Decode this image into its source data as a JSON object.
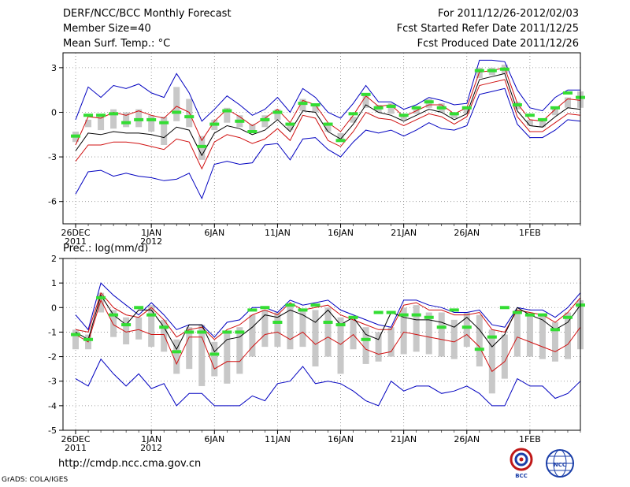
{
  "header": {
    "title": "DERF/NCC/BCC Monthly Forecast",
    "member_size": "Member Size=40",
    "variable": "Mean Surf. Temp.: °C",
    "for_range": "For 2011/12/26-2012/02/03",
    "fcst_started": "Fcst Started Refer Date 2011/12/25",
    "fcst_produced": "Fcst Produced Date 2011/12/26"
  },
  "footer": {
    "url": "http://cmdp.ncc.cma.gov.cn",
    "credit": "GrADS: COLA/IGES",
    "logo_bcc": "BCC",
    "logo_ncc": "NCC"
  },
  "colors": {
    "max_min": "#0000c0",
    "pct": "#d01010",
    "median": "#000000",
    "box": "#c8c8c8",
    "obs": "#33dd33"
  },
  "chart_data": [
    {
      "type": "line",
      "title": "Mean Surf. Temp.: °C",
      "ylim": [
        -7.5,
        4
      ],
      "yticks": [
        -6,
        -3,
        0,
        3
      ],
      "ytick_labels": [
        "-6",
        "-3",
        "0",
        "3"
      ],
      "xlim": [
        -1,
        40
      ],
      "xticks": [
        0,
        6,
        11,
        16,
        21,
        26,
        31,
        36
      ],
      "xtick_labels": [
        [
          "26DEC",
          "2011"
        ],
        [
          "1JAN",
          "2012"
        ],
        [
          "6JAN",
          ""
        ],
        [
          "11JAN",
          ""
        ],
        [
          "16JAN",
          ""
        ],
        [
          "21JAN",
          ""
        ],
        [
          "26JAN",
          ""
        ],
        [
          "1FEB",
          ""
        ]
      ],
      "grid": true,
      "series": [
        {
          "name": "max",
          "values": [
            -0.5,
            1.7,
            1.0,
            1.8,
            1.6,
            1.9,
            1.3,
            1.0,
            2.6,
            1.3,
            -0.6,
            0.2,
            1.1,
            0.5,
            -0.2,
            0.2,
            1.0,
            0.0,
            1.6,
            1.0,
            0.0,
            -0.4,
            0.6,
            1.8,
            0.7,
            0.7,
            0.2,
            0.5,
            1.0,
            0.8,
            0.5,
            0.6,
            3.5,
            3.5,
            3.4,
            1.5,
            0.3,
            0.1,
            1.0,
            1.5,
            1.5
          ]
        },
        {
          "name": "p90",
          "values": [
            -2.2,
            -0.3,
            -0.4,
            0.0,
            -0.2,
            0.1,
            -0.2,
            -0.4,
            0.4,
            0.0,
            -1.9,
            -0.6,
            0.2,
            -0.3,
            -0.9,
            -0.4,
            0.2,
            -0.7,
            0.8,
            0.5,
            -0.7,
            -1.3,
            -0.2,
            1.1,
            0.4,
            0.5,
            -0.3,
            0.1,
            0.5,
            0.5,
            -0.1,
            0.3,
            2.7,
            2.8,
            3.0,
            0.6,
            -0.5,
            -0.6,
            0.2,
            0.9,
            0.8
          ]
        },
        {
          "name": "median",
          "values": [
            -2.6,
            -1.4,
            -1.5,
            -1.3,
            -1.4,
            -1.4,
            -1.5,
            -1.7,
            -1.0,
            -1.2,
            -2.9,
            -1.4,
            -0.9,
            -1.1,
            -1.5,
            -1.2,
            -0.5,
            -1.3,
            0.1,
            0.0,
            -1.3,
            -1.8,
            -0.8,
            0.5,
            0.0,
            -0.2,
            -0.6,
            -0.2,
            0.2,
            0.0,
            -0.5,
            -0.1,
            2.2,
            2.4,
            2.6,
            0.1,
            -0.9,
            -1.0,
            -0.3,
            0.3,
            0.2
          ]
        },
        {
          "name": "p10",
          "values": [
            -3.3,
            -2.2,
            -2.2,
            -2.0,
            -2.0,
            -2.1,
            -2.3,
            -2.5,
            -1.8,
            -2.0,
            -3.8,
            -2.0,
            -1.5,
            -1.7,
            -2.1,
            -1.8,
            -1.1,
            -1.9,
            -0.2,
            -0.4,
            -1.9,
            -2.3,
            -1.3,
            0.0,
            -0.4,
            -0.5,
            -0.9,
            -0.5,
            -0.1,
            -0.3,
            -0.8,
            -0.3,
            1.8,
            2.0,
            2.2,
            -0.3,
            -1.3,
            -1.3,
            -0.7,
            -0.1,
            -0.2
          ]
        },
        {
          "name": "min",
          "values": [
            -5.5,
            -4.0,
            -3.9,
            -4.3,
            -4.1,
            -4.3,
            -4.4,
            -4.6,
            -4.5,
            -4.1,
            -5.8,
            -3.5,
            -3.3,
            -3.5,
            -3.4,
            -2.2,
            -2.1,
            -3.2,
            -1.8,
            -1.7,
            -2.5,
            -3.0,
            -2.0,
            -1.2,
            -1.4,
            -1.2,
            -1.6,
            -1.2,
            -0.7,
            -1.1,
            -1.2,
            -0.9,
            1.2,
            1.4,
            1.6,
            -0.8,
            -1.7,
            -1.7,
            -1.2,
            -0.5,
            -0.6
          ]
        },
        {
          "name": "box_upper",
          "values": [
            -1.3,
            -0.5,
            -0.3,
            0.2,
            0.0,
            0.2,
            -0.2,
            -0.3,
            1.7,
            0.9,
            -1.6,
            -0.5,
            0.3,
            -0.2,
            -0.8,
            -0.2,
            0.2,
            -0.8,
            0.9,
            0.5,
            -0.7,
            -1.4,
            -0.3,
            1.2,
            0.5,
            0.6,
            -0.2,
            0.2,
            0.9,
            0.6,
            -0.1,
            0.4,
            3.0,
            3.0,
            3.2,
            0.7,
            -0.5,
            -0.6,
            0.3,
            1.0,
            1.4
          ]
        },
        {
          "name": "box_lower",
          "values": [
            -2.0,
            -1.0,
            -1.2,
            -1.1,
            -1.0,
            -1.0,
            -1.3,
            -2.2,
            -0.6,
            -1.0,
            -3.2,
            -1.2,
            -0.7,
            -1.0,
            -1.4,
            -1.0,
            -0.5,
            -1.2,
            0.1,
            0.0,
            -1.3,
            -1.8,
            -0.7,
            0.3,
            0.0,
            -0.1,
            -0.5,
            -0.1,
            0.3,
            0.0,
            -0.4,
            -0.1,
            2.3,
            2.5,
            2.6,
            0.2,
            -0.9,
            -1.0,
            -0.2,
            0.3,
            0.3
          ]
        },
        {
          "name": "observed",
          "values": [
            -1.6,
            -0.2,
            -0.2,
            -0.1,
            -0.7,
            -0.5,
            -0.5,
            -0.7,
            0.0,
            -0.3,
            -2.3,
            -0.8,
            0.1,
            -0.6,
            -1.3,
            -0.5,
            0.0,
            -0.8,
            0.6,
            0.5,
            -0.8,
            -1.9,
            -0.1,
            1.2,
            0.3,
            0.4,
            -0.2,
            0.3,
            0.7,
            0.3,
            -0.1,
            0.3,
            2.8,
            2.8,
            2.9,
            0.5,
            -0.2,
            -0.5,
            0.3,
            1.3,
            1.0
          ]
        }
      ]
    },
    {
      "type": "line",
      "title": "Prec.: log(mm/d)",
      "ylim": [
        -5,
        2
      ],
      "yticks": [
        -5,
        -4,
        -3,
        -2,
        -1,
        0,
        1,
        2
      ],
      "ytick_labels": [
        "-5",
        "-4",
        "-3",
        "-2",
        "-1",
        "0",
        "1",
        "2"
      ],
      "xlim": [
        -1,
        40
      ],
      "xticks": [
        0,
        6,
        11,
        16,
        21,
        26,
        31,
        36
      ],
      "xtick_labels": [
        [
          "26DEC",
          "2011"
        ],
        [
          "1JAN",
          "2012"
        ],
        [
          "6JAN",
          ""
        ],
        [
          "11JAN",
          ""
        ],
        [
          "16JAN",
          ""
        ],
        [
          "21JAN",
          ""
        ],
        [
          "26JAN",
          ""
        ],
        [
          "1FEB",
          ""
        ]
      ],
      "grid": true,
      "series": [
        {
          "name": "max",
          "values": [
            -0.3,
            -0.9,
            1.0,
            0.5,
            0.1,
            -0.3,
            0.2,
            -0.3,
            -0.9,
            -0.7,
            -0.7,
            -1.2,
            -0.6,
            -0.5,
            0.0,
            0.0,
            -0.2,
            0.3,
            0.1,
            0.2,
            0.3,
            -0.1,
            -0.3,
            -0.5,
            -0.7,
            -0.8,
            0.3,
            0.3,
            0.1,
            0.0,
            -0.2,
            -0.2,
            -0.1,
            -0.7,
            -0.8,
            0.0,
            -0.1,
            -0.1,
            -0.4,
            0.0,
            0.6
          ]
        },
        {
          "name": "p90",
          "values": [
            -0.9,
            -1.0,
            0.6,
            0.0,
            -0.3,
            -0.4,
            0.0,
            -0.5,
            -1.2,
            -0.9,
            -0.8,
            -1.3,
            -0.9,
            -0.7,
            -0.3,
            -0.1,
            -0.3,
            0.2,
            -0.1,
            0.0,
            0.1,
            -0.3,
            -0.5,
            -0.7,
            -0.9,
            -0.9,
            0.1,
            0.2,
            -0.1,
            -0.1,
            -0.3,
            -0.3,
            -0.2,
            -0.9,
            -1.0,
            -0.1,
            -0.2,
            -0.3,
            -0.6,
            -0.2,
            0.4
          ]
        },
        {
          "name": "median",
          "values": [
            -1.0,
            -1.3,
            0.5,
            -0.3,
            -0.7,
            -0.1,
            -0.1,
            -0.8,
            -1.7,
            -0.7,
            -0.7,
            -1.8,
            -1.3,
            -1.2,
            -0.8,
            -0.3,
            -0.4,
            -0.1,
            -0.3,
            -0.6,
            -0.1,
            -0.7,
            -0.4,
            -1.1,
            -1.3,
            -0.2,
            -0.4,
            -0.5,
            -0.5,
            -0.6,
            -0.8,
            -0.4,
            -0.9,
            -1.6,
            -1.1,
            0.0,
            -0.3,
            -0.5,
            -0.9,
            -0.6,
            0.1
          ]
        },
        {
          "name": "p10",
          "values": [
            -1.1,
            -1.4,
            0.3,
            -0.7,
            -1.0,
            -0.9,
            -1.1,
            -1.1,
            -2.3,
            -1.2,
            -1.2,
            -2.5,
            -2.2,
            -2.2,
            -1.6,
            -1.1,
            -1.0,
            -1.3,
            -1.0,
            -1.5,
            -1.2,
            -1.5,
            -1.1,
            -1.7,
            -1.9,
            -1.8,
            -1.0,
            -1.1,
            -1.2,
            -1.3,
            -1.4,
            -1.1,
            -1.6,
            -2.6,
            -2.2,
            -1.2,
            -1.4,
            -1.6,
            -1.8,
            -1.5,
            -0.8
          ]
        },
        {
          "name": "min",
          "values": [
            -2.9,
            -3.2,
            -2.1,
            -2.7,
            -3.2,
            -2.7,
            -3.3,
            -3.1,
            -4.0,
            -3.5,
            -3.5,
            -4.0,
            -4.0,
            -4.0,
            -3.6,
            -3.8,
            -3.1,
            -3.0,
            -2.4,
            -3.1,
            -3.0,
            -3.1,
            -3.4,
            -3.8,
            -4.0,
            -3.0,
            -3.4,
            -3.2,
            -3.2,
            -3.5,
            -3.4,
            -3.2,
            -3.5,
            -4.0,
            -4.0,
            -2.9,
            -3.2,
            -3.2,
            -3.7,
            -3.5,
            -3.0
          ]
        },
        {
          "name": "box_upper",
          "values": [
            -0.9,
            -1.1,
            0.6,
            -0.1,
            -0.4,
            -0.4,
            0.1,
            -0.5,
            -1.3,
            -0.8,
            -0.7,
            -1.4,
            -1.0,
            -0.8,
            -0.3,
            -0.1,
            -0.2,
            0.1,
            -0.1,
            -0.1,
            0.0,
            -0.4,
            -0.4,
            -0.8,
            -1.0,
            -0.8,
            0.0,
            0.1,
            -0.2,
            -0.2,
            -0.5,
            -0.2,
            -0.3,
            -0.9,
            -1.1,
            -0.1,
            -0.2,
            -0.3,
            -0.6,
            -0.2,
            0.3
          ]
        },
        {
          "name": "box_lower",
          "values": [
            -1.7,
            -1.7,
            -0.2,
            -1.2,
            -1.5,
            -1.3,
            -1.6,
            -1.8,
            -2.7,
            -2.5,
            -3.2,
            -2.8,
            -3.1,
            -2.7,
            -2.0,
            -1.6,
            -1.6,
            -1.7,
            -1.6,
            -2.4,
            -2.0,
            -2.7,
            -1.7,
            -2.3,
            -2.2,
            -2.0,
            -1.9,
            -1.8,
            -1.9,
            -2.0,
            -2.1,
            -1.6,
            -2.4,
            -3.5,
            -2.9,
            -2.0,
            -2.0,
            -2.1,
            -2.2,
            -2.1,
            -1.7
          ]
        },
        {
          "name": "observed",
          "values": [
            -1.1,
            -1.3,
            0.4,
            -0.3,
            -0.7,
            0.0,
            -0.3,
            -0.8,
            -1.8,
            -1.0,
            -1.0,
            -1.9,
            -1.0,
            -1.0,
            -0.1,
            0.0,
            -0.6,
            0.1,
            -0.1,
            0.1,
            -0.6,
            -0.7,
            -0.4,
            -1.3,
            -0.2,
            -0.2,
            -0.3,
            -0.3,
            -0.4,
            -0.8,
            -0.1,
            -0.8,
            -1.7,
            -1.2,
            0.0,
            -0.2,
            -0.3,
            -0.3,
            -0.9,
            -0.4,
            0.1
          ]
        }
      ]
    }
  ]
}
